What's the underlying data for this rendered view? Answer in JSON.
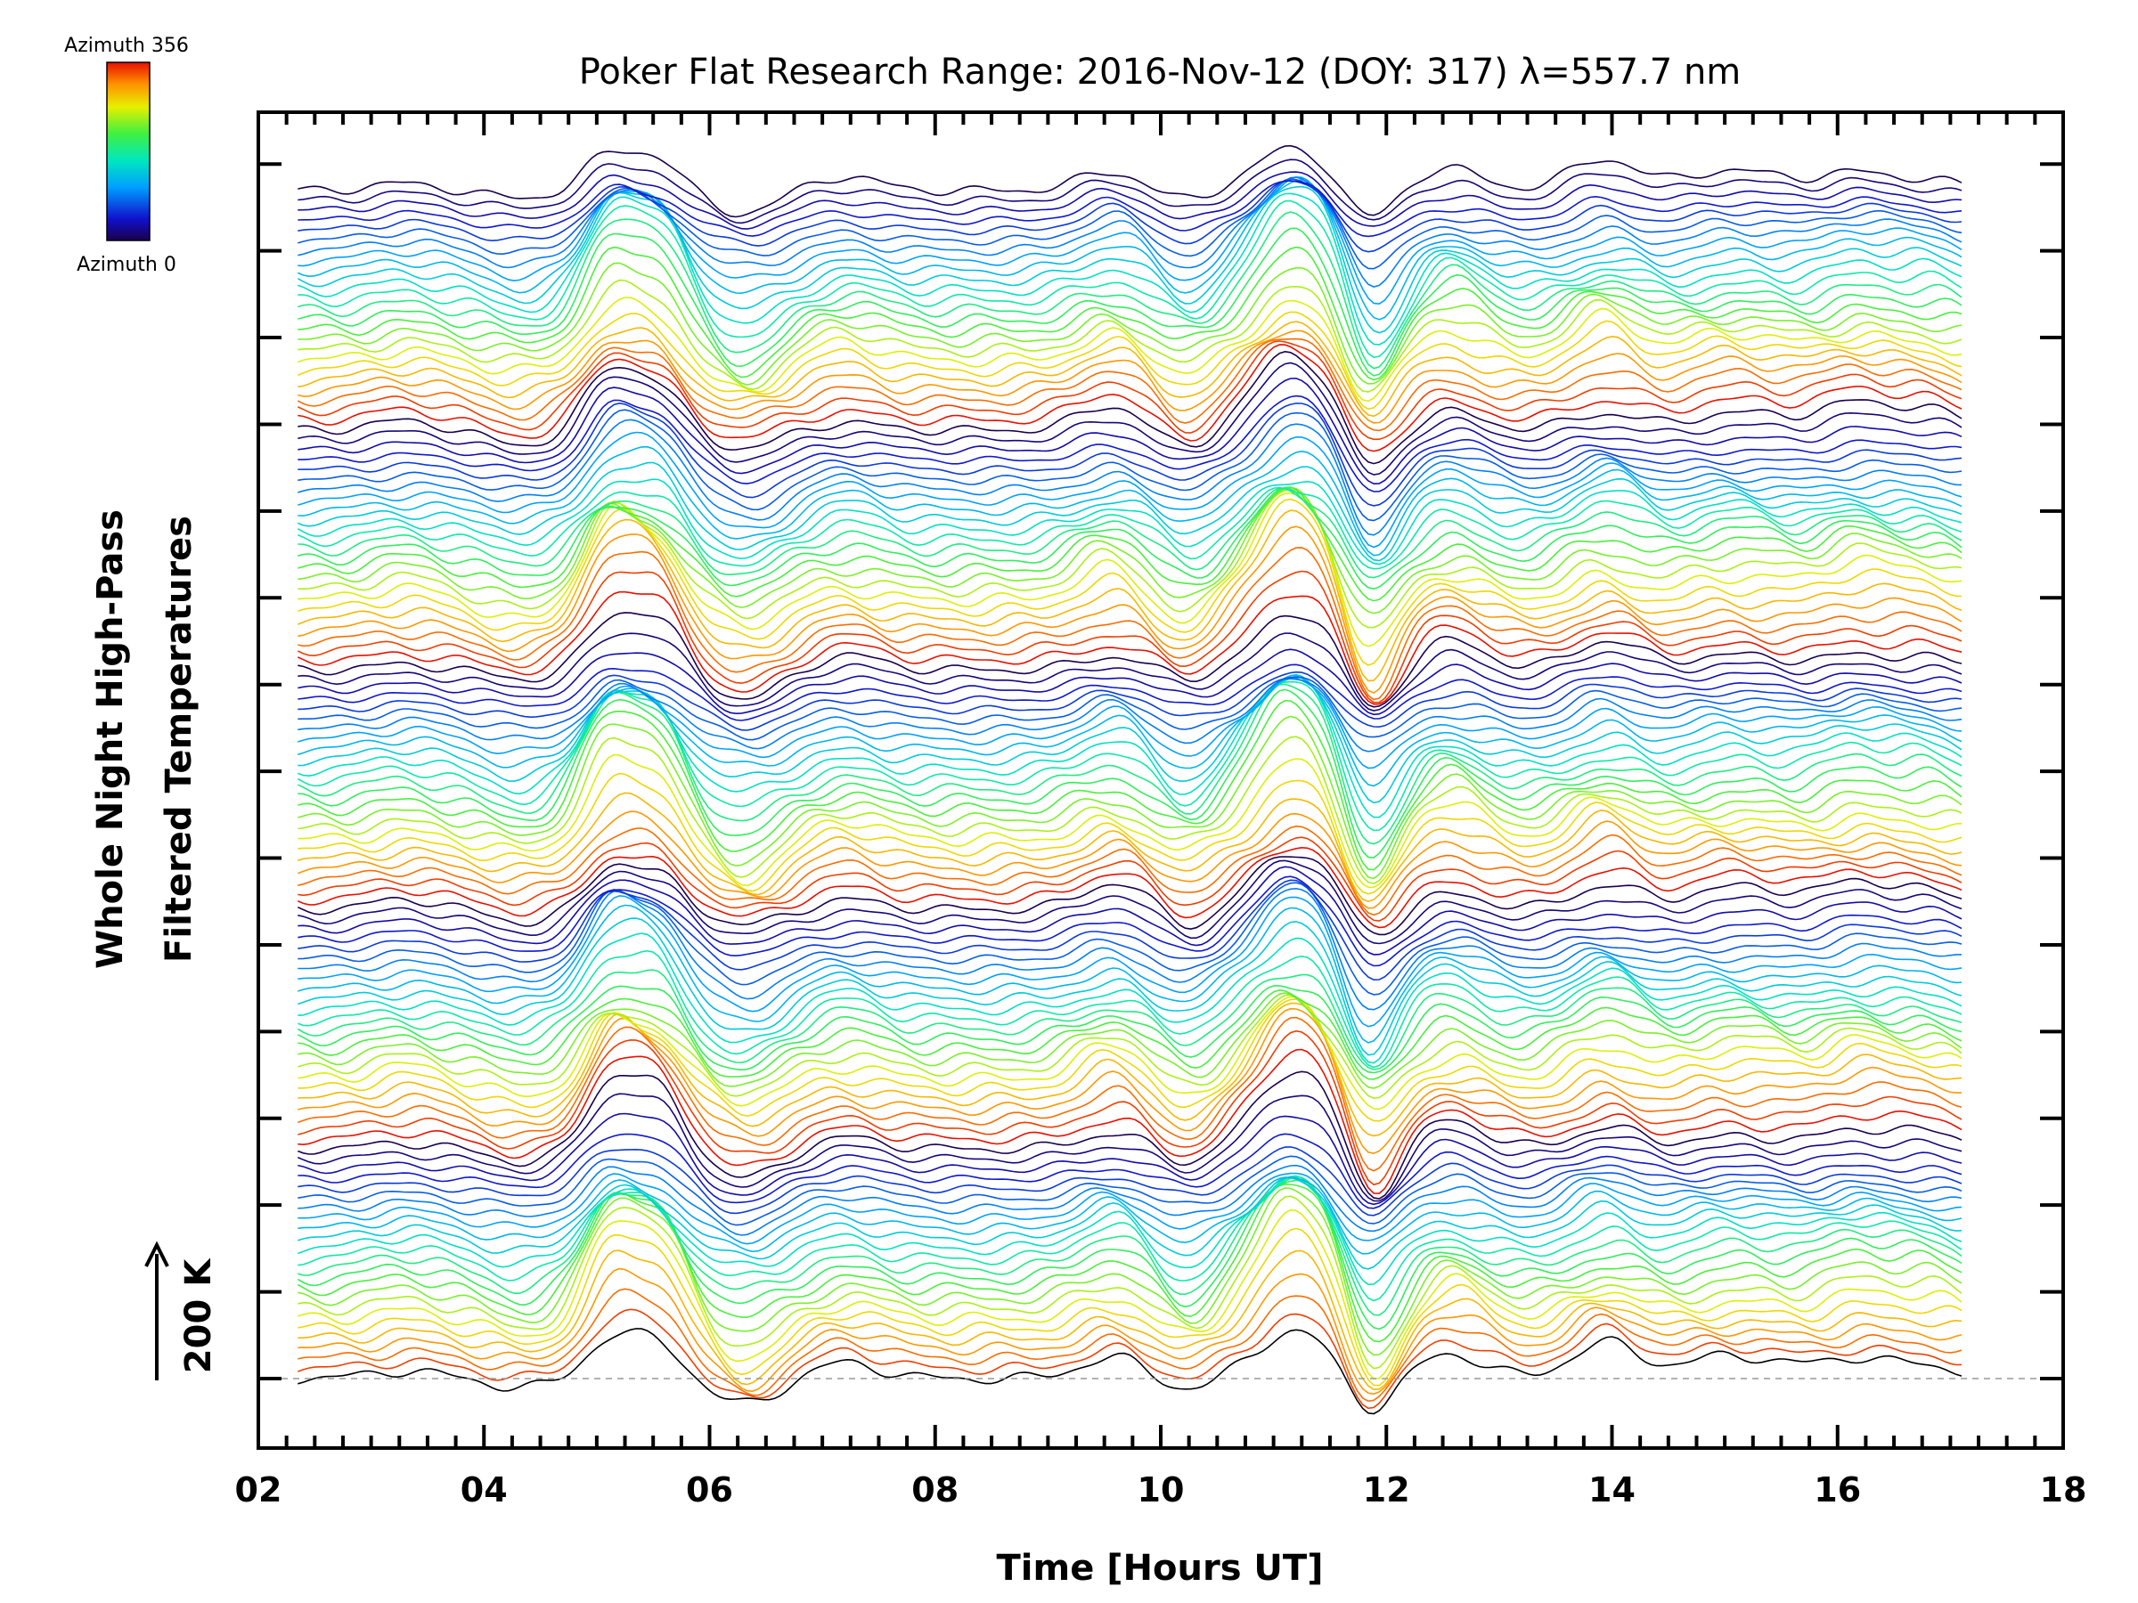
{
  "chart_data": {
    "type": "line",
    "title": "Poker Flat Research Range: 2016-Nov-12 (DOY: 317) λ=557.7 nm",
    "xlabel": "Time [Hours UT]",
    "ylabel_line1": "Whole Night High-Pass",
    "ylabel_line2": "Filtered Temperatures",
    "xlim": [
      2,
      18
    ],
    "x_ticks": [
      "02",
      "04",
      "06",
      "08",
      "10",
      "12",
      "14",
      "16",
      "18"
    ],
    "y_offset_step_K": 200,
    "scale_bar_label": "200 K",
    "series_count": 120,
    "data_x_range": [
      2.35,
      17.1
    ],
    "colorbar": {
      "top_label": "Azimuth 356",
      "bottom_label": "Azimuth 0",
      "min_azimuth": 0,
      "max_azimuth": 356,
      "colormap": "rainbow"
    },
    "profile_features_hours": [
      {
        "center": 3.3,
        "amplitude_K": 40,
        "label": "small bump"
      },
      {
        "center": 4.35,
        "amplitude_K": -60,
        "label": "dip"
      },
      {
        "center": 5.12,
        "amplitude_K": 260,
        "label": "peak 1"
      },
      {
        "center": 5.55,
        "amplitude_K": 210,
        "label": "peak 2"
      },
      {
        "center": 6.3,
        "amplitude_K": -120,
        "label": "dip"
      },
      {
        "center": 7.2,
        "amplitude_K": 60,
        "label": "broad rise"
      },
      {
        "center": 9.6,
        "amplitude_K": 110,
        "label": "bump"
      },
      {
        "center": 10.35,
        "amplitude_K": -140,
        "label": "dip"
      },
      {
        "center": 10.65,
        "amplitude_K": 140,
        "label": "peak"
      },
      {
        "center": 11.1,
        "amplitude_K": 230,
        "label": "peak"
      },
      {
        "center": 11.45,
        "amplitude_K": 190,
        "label": "peak"
      },
      {
        "center": 11.85,
        "amplitude_K": -220,
        "label": "sharp drop"
      },
      {
        "center": 12.55,
        "amplitude_K": 120,
        "label": "bump"
      },
      {
        "center": 13.95,
        "amplitude_K": 130,
        "label": "bump"
      },
      {
        "center": 14.9,
        "amplitude_K": 70,
        "label": "bump"
      },
      {
        "center": 15.4,
        "amplitude_K": 60,
        "label": "bump"
      },
      {
        "center": 16.15,
        "amplitude_K": 110,
        "label": "spike"
      },
      {
        "center": 16.8,
        "amplitude_K": 80,
        "label": "bump"
      }
    ],
    "baseline_line": "dashed grey at bottom series zero"
  }
}
